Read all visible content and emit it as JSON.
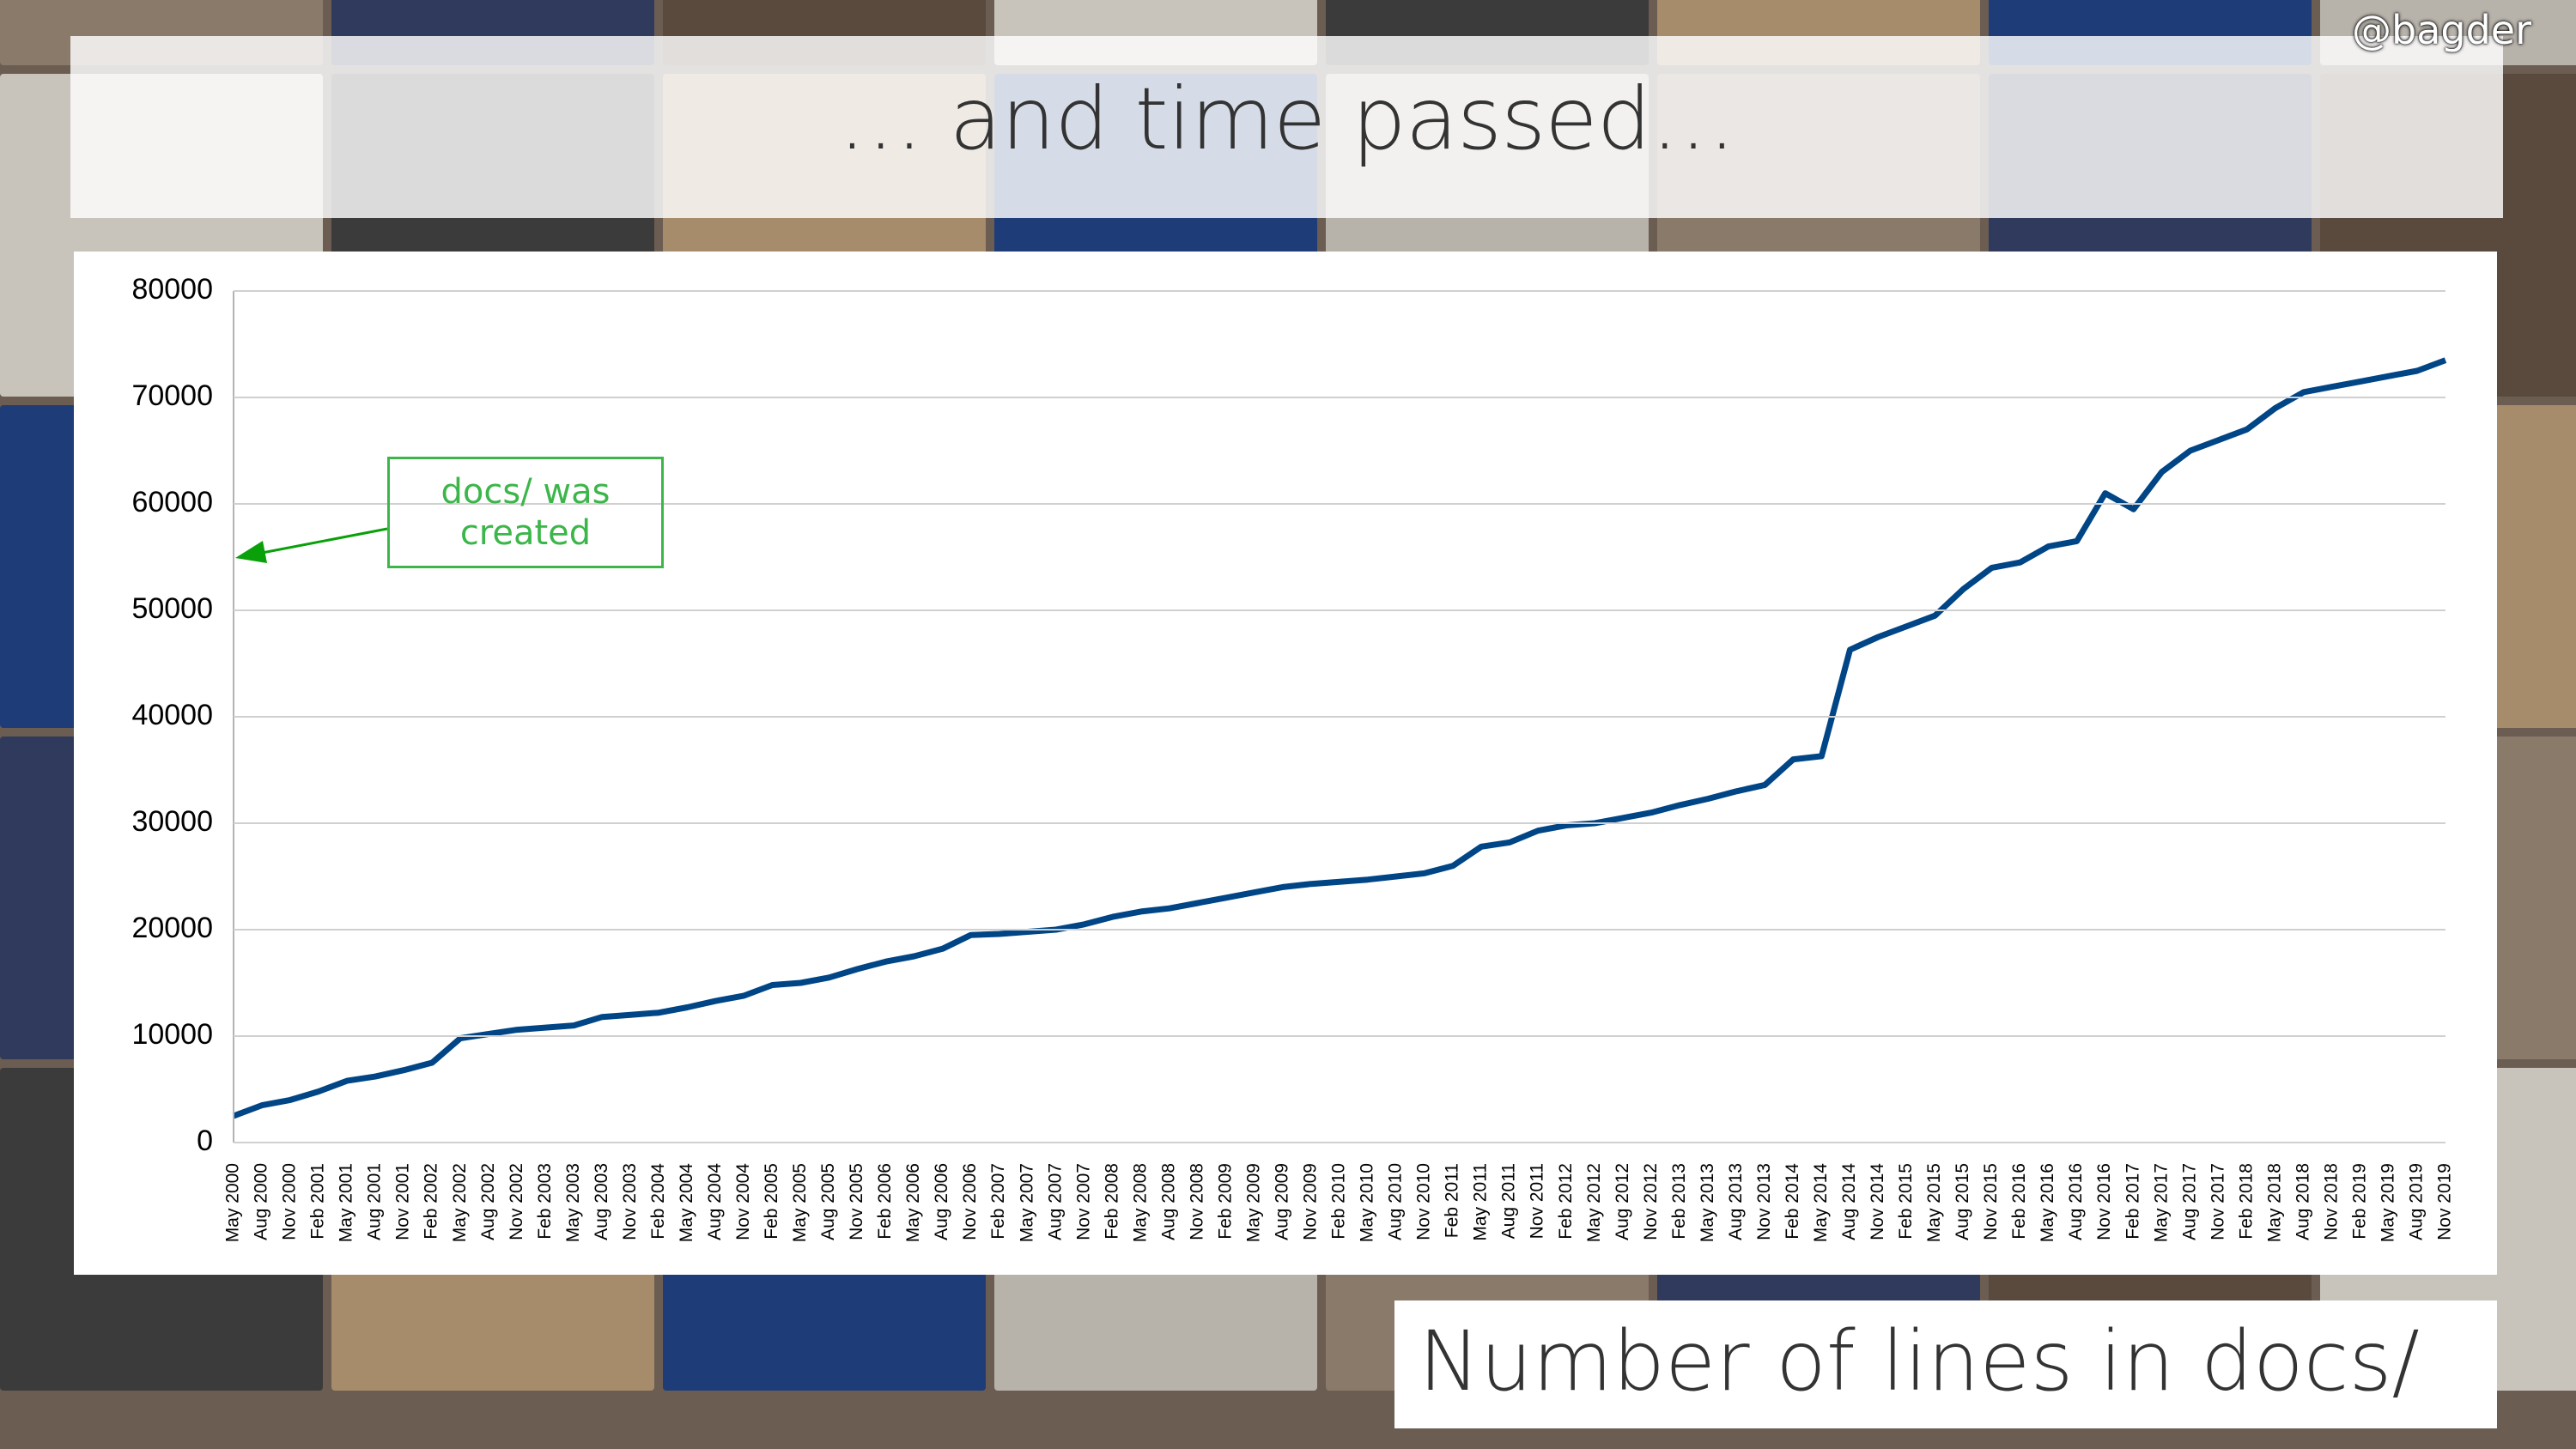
{
  "slide": {
    "handle": "@bagder",
    "caption": "Number of lines in docs/"
  },
  "chart_data": {
    "type": "line",
    "title": "… and time passed…",
    "annotation": "docs/ was created",
    "categories": [
      "May 2000",
      "Aug 2000",
      "Nov 2000",
      "Feb 2001",
      "May 2001",
      "Aug 2001",
      "Nov 2001",
      "Feb 2002",
      "May 2002",
      "Aug 2002",
      "Nov 2002",
      "Feb 2003",
      "May 2003",
      "Aug 2003",
      "Nov 2003",
      "Feb 2004",
      "May 2004",
      "Aug 2004",
      "Nov 2004",
      "Feb 2005",
      "May 2005",
      "Aug 2005",
      "Nov 2005",
      "Feb 2006",
      "May 2006",
      "Aug 2006",
      "Nov 2006",
      "Feb 2007",
      "May 2007",
      "Aug 2007",
      "Nov 2007",
      "Feb 2008",
      "May 2008",
      "Aug 2008",
      "Nov 2008",
      "Feb 2009",
      "May 2009",
      "Aug 2009",
      "Nov 2009",
      "Feb 2010",
      "May 2010",
      "Aug 2010",
      "Nov 2010",
      "Feb 2011",
      "May 2011",
      "Aug 2011",
      "Nov 2011",
      "Feb 2012",
      "May 2012",
      "Aug 2012",
      "Nov 2012",
      "Feb 2013",
      "May 2013",
      "Aug 2013",
      "Nov 2013",
      "Feb 2014",
      "May 2014",
      "Aug 2014",
      "Nov 2014",
      "Feb 2015",
      "May 2015",
      "Aug 2015",
      "Nov 2015",
      "Feb 2016",
      "May 2016",
      "Aug 2016",
      "Nov 2016",
      "Feb 2017",
      "May 2017",
      "Aug 2017",
      "Nov 2017",
      "Feb 2018",
      "May 2018",
      "Aug 2018",
      "Nov 2018",
      "Feb 2019",
      "May 2019",
      "Aug 2019",
      "Nov 2019"
    ],
    "values": [
      2500,
      3500,
      4000,
      4800,
      5800,
      6200,
      6800,
      7500,
      9800,
      10200,
      10600,
      10800,
      11000,
      11800,
      12000,
      12200,
      12700,
      13300,
      13800,
      14800,
      15000,
      15500,
      16300,
      17000,
      17500,
      18200,
      19500,
      19600,
      19800,
      20000,
      20500,
      21200,
      21700,
      22000,
      22500,
      23000,
      23500,
      24000,
      24300,
      24500,
      24700,
      25000,
      25300,
      26000,
      27800,
      28200,
      29300,
      29800,
      30000,
      30500,
      31000,
      31700,
      32300,
      33000,
      33600,
      36000,
      36300,
      46300,
      47500,
      48500,
      49500,
      52000,
      54000,
      54500,
      56000,
      56500,
      61000,
      59500,
      63000,
      65000,
      66000,
      67000,
      69000,
      70500,
      71000,
      71500,
      72000,
      72500,
      73500
    ],
    "color": "#004586",
    "ylim": [
      0,
      80000
    ],
    "yticks": [
      0,
      10000,
      20000,
      30000,
      40000,
      50000,
      60000,
      70000,
      80000
    ],
    "grid": true
  }
}
